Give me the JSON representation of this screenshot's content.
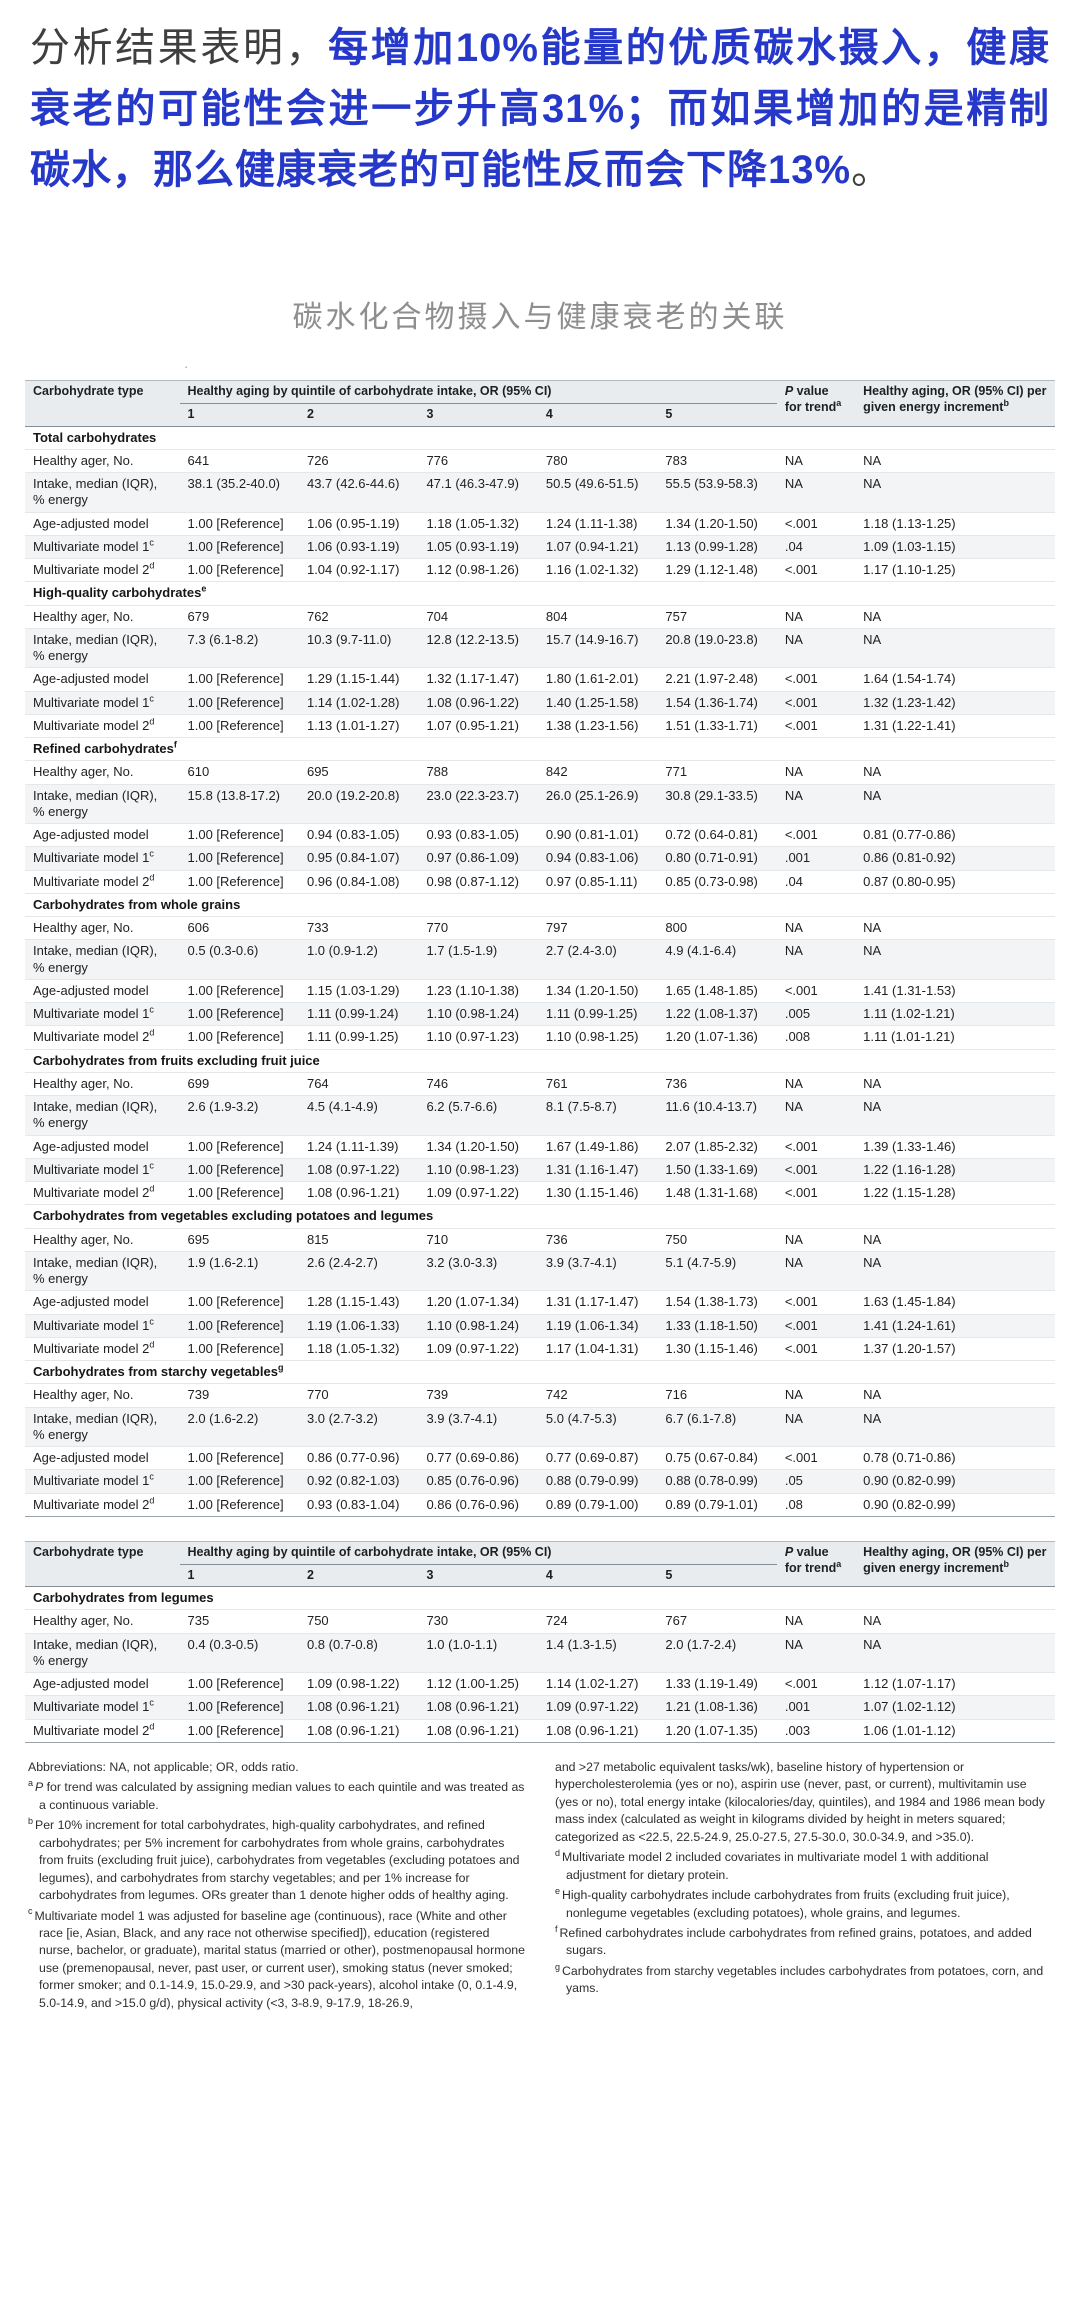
{
  "colors": {
    "accent_blue": "#2638c9",
    "title_gray": "#8e8e8e",
    "table_header_bg": "#e8ecef",
    "row_shade_bg": "#f2f4f6"
  },
  "intro": {
    "prefix": "分析结果表明，",
    "highlight": "每增加10%能量的优质碳水摄入，健康衰老的可能性会进一步升高31%；而如果增加的是精制碳水，那么健康衰老的可能性反而会下降13%",
    "suffix": "。"
  },
  "figure_title": "碳水化合物摄入与健康衰老的关联",
  "stray_mark": "·",
  "table": {
    "header": {
      "col_type": "Carbohydrate type",
      "group_title": "Healthy aging by quintile of carbohydrate intake, OR (95% CI)",
      "quintiles": [
        "1",
        "2",
        "3",
        "4",
        "5"
      ],
      "p_italic": "P",
      "p_rest": " value for trend",
      "p_sup": "a",
      "increment_label": "Healthy aging, OR (95% CI) per given energy increment",
      "increment_sup": "b"
    },
    "part1_sections": [
      {
        "label": "Total carbohydrates",
        "sup": "",
        "rows": [
          {
            "label": "Healthy ager, No.",
            "sup": "",
            "values": [
              "641",
              "726",
              "776",
              "780",
              "783",
              "NA",
              "NA"
            ]
          },
          {
            "label": "Intake, median (IQR), % energy",
            "sup": "",
            "values": [
              "38.1 (35.2-40.0)",
              "43.7 (42.6-44.6)",
              "47.1 (46.3-47.9)",
              "50.5 (49.6-51.5)",
              "55.5 (53.9-58.3)",
              "NA",
              "NA"
            ]
          },
          {
            "label": "Age-adjusted model",
            "sup": "",
            "values": [
              "1.00 [Reference]",
              "1.06 (0.95-1.19)",
              "1.18 (1.05-1.32)",
              "1.24 (1.11-1.38)",
              "1.34 (1.20-1.50)",
              "<.001",
              "1.18 (1.13-1.25)"
            ]
          },
          {
            "label": "Multivariate model 1",
            "sup": "c",
            "values": [
              "1.00 [Reference]",
              "1.06 (0.93-1.19)",
              "1.05 (0.93-1.19)",
              "1.07 (0.94-1.21)",
              "1.13 (0.99-1.28)",
              ".04",
              "1.09 (1.03-1.15)"
            ]
          },
          {
            "label": "Multivariate model 2",
            "sup": "d",
            "values": [
              "1.00 [Reference]",
              "1.04 (0.92-1.17)",
              "1.12 (0.98-1.26)",
              "1.16 (1.02-1.32)",
              "1.29 (1.12-1.48)",
              "<.001",
              "1.17 (1.10-1.25)"
            ]
          }
        ]
      },
      {
        "label": "High-quality carbohydrates",
        "sup": "e",
        "rows": [
          {
            "label": "Healthy ager, No.",
            "sup": "",
            "values": [
              "679",
              "762",
              "704",
              "804",
              "757",
              "NA",
              "NA"
            ]
          },
          {
            "label": "Intake, median (IQR), % energy",
            "sup": "",
            "values": [
              "7.3 (6.1-8.2)",
              "10.3 (9.7-11.0)",
              "12.8 (12.2-13.5)",
              "15.7 (14.9-16.7)",
              "20.8 (19.0-23.8)",
              "NA",
              "NA"
            ]
          },
          {
            "label": "Age-adjusted model",
            "sup": "",
            "values": [
              "1.00 [Reference]",
              "1.29 (1.15-1.44)",
              "1.32 (1.17-1.47)",
              "1.80 (1.61-2.01)",
              "2.21 (1.97-2.48)",
              "<.001",
              "1.64 (1.54-1.74)"
            ]
          },
          {
            "label": "Multivariate model 1",
            "sup": "c",
            "values": [
              "1.00 [Reference]",
              "1.14 (1.02-1.28)",
              "1.08 (0.96-1.22)",
              "1.40 (1.25-1.58)",
              "1.54 (1.36-1.74)",
              "<.001",
              "1.32 (1.23-1.42)"
            ]
          },
          {
            "label": "Multivariate model 2",
            "sup": "d",
            "values": [
              "1.00 [Reference]",
              "1.13 (1.01-1.27)",
              "1.07 (0.95-1.21)",
              "1.38 (1.23-1.56)",
              "1.51 (1.33-1.71)",
              "<.001",
              "1.31 (1.22-1.41)"
            ]
          }
        ]
      },
      {
        "label": "Refined carbohydrates",
        "sup": "f",
        "rows": [
          {
            "label": "Healthy ager, No.",
            "sup": "",
            "values": [
              "610",
              "695",
              "788",
              "842",
              "771",
              "NA",
              "NA"
            ]
          },
          {
            "label": "Intake, median (IQR), % energy",
            "sup": "",
            "values": [
              "15.8 (13.8-17.2)",
              "20.0 (19.2-20.8)",
              "23.0 (22.3-23.7)",
              "26.0 (25.1-26.9)",
              "30.8 (29.1-33.5)",
              "NA",
              "NA"
            ]
          },
          {
            "label": "Age-adjusted model",
            "sup": "",
            "values": [
              "1.00 [Reference]",
              "0.94 (0.83-1.05)",
              "0.93 (0.83-1.05)",
              "0.90 (0.81-1.01)",
              "0.72 (0.64-0.81)",
              "<.001",
              "0.81 (0.77-0.86)"
            ]
          },
          {
            "label": "Multivariate model 1",
            "sup": "c",
            "values": [
              "1.00 [Reference]",
              "0.95 (0.84-1.07)",
              "0.97 (0.86-1.09)",
              "0.94 (0.83-1.06)",
              "0.80 (0.71-0.91)",
              ".001",
              "0.86 (0.81-0.92)"
            ]
          },
          {
            "label": "Multivariate model 2",
            "sup": "d",
            "values": [
              "1.00 [Reference]",
              "0.96 (0.84-1.08)",
              "0.98 (0.87-1.12)",
              "0.97 (0.85-1.11)",
              "0.85 (0.73-0.98)",
              ".04",
              "0.87 (0.80-0.95)"
            ]
          }
        ]
      },
      {
        "label": "Carbohydrates from whole grains",
        "sup": "",
        "rows": [
          {
            "label": "Healthy ager, No.",
            "sup": "",
            "values": [
              "606",
              "733",
              "770",
              "797",
              "800",
              "NA",
              "NA"
            ]
          },
          {
            "label": "Intake, median (IQR), % energy",
            "sup": "",
            "values": [
              "0.5 (0.3-0.6)",
              "1.0 (0.9-1.2)",
              "1.7 (1.5-1.9)",
              "2.7 (2.4-3.0)",
              "4.9 (4.1-6.4)",
              "NA",
              "NA"
            ]
          },
          {
            "label": "Age-adjusted model",
            "sup": "",
            "values": [
              "1.00 [Reference]",
              "1.15 (1.03-1.29)",
              "1.23 (1.10-1.38)",
              "1.34 (1.20-1.50)",
              "1.65 (1.48-1.85)",
              "<.001",
              "1.41 (1.31-1.53)"
            ]
          },
          {
            "label": "Multivariate model 1",
            "sup": "c",
            "values": [
              "1.00 [Reference]",
              "1.11 (0.99-1.24)",
              "1.10 (0.98-1.24)",
              "1.11 (0.99-1.25)",
              "1.22 (1.08-1.37)",
              ".005",
              "1.11 (1.02-1.21)"
            ]
          },
          {
            "label": "Multivariate model 2",
            "sup": "d",
            "values": [
              "1.00 [Reference]",
              "1.11 (0.99-1.25)",
              "1.10 (0.97-1.23)",
              "1.10 (0.98-1.25)",
              "1.20 (1.07-1.36)",
              ".008",
              "1.11 (1.01-1.21)"
            ]
          }
        ]
      },
      {
        "label": "Carbohydrates from fruits excluding fruit juice",
        "sup": "",
        "rows": [
          {
            "label": "Healthy ager, No.",
            "sup": "",
            "values": [
              "699",
              "764",
              "746",
              "761",
              "736",
              "NA",
              "NA"
            ]
          },
          {
            "label": "Intake, median (IQR), % energy",
            "sup": "",
            "values": [
              "2.6 (1.9-3.2)",
              "4.5 (4.1-4.9)",
              "6.2 (5.7-6.6)",
              "8.1 (7.5-8.7)",
              "11.6 (10.4-13.7)",
              "NA",
              "NA"
            ]
          },
          {
            "label": "Age-adjusted model",
            "sup": "",
            "values": [
              "1.00 [Reference]",
              "1.24 (1.11-1.39)",
              "1.34 (1.20-1.50)",
              "1.67 (1.49-1.86)",
              "2.07 (1.85-2.32)",
              "<.001",
              "1.39 (1.33-1.46)"
            ]
          },
          {
            "label": "Multivariate model 1",
            "sup": "c",
            "values": [
              "1.00 [Reference]",
              "1.08 (0.97-1.22)",
              "1.10 (0.98-1.23)",
              "1.31 (1.16-1.47)",
              "1.50 (1.33-1.69)",
              "<.001",
              "1.22 (1.16-1.28)"
            ]
          },
          {
            "label": "Multivariate model 2",
            "sup": "d",
            "values": [
              "1.00 [Reference]",
              "1.08 (0.96-1.21)",
              "1.09 (0.97-1.22)",
              "1.30 (1.15-1.46)",
              "1.48 (1.31-1.68)",
              "<.001",
              "1.22 (1.15-1.28)"
            ]
          }
        ]
      },
      {
        "label": "Carbohydrates from vegetables excluding potatoes and legumes",
        "sup": "",
        "rows": [
          {
            "label": "Healthy ager, No.",
            "sup": "",
            "values": [
              "695",
              "815",
              "710",
              "736",
              "750",
              "NA",
              "NA"
            ]
          },
          {
            "label": "Intake, median (IQR), % energy",
            "sup": "",
            "values": [
              "1.9 (1.6-2.1)",
              "2.6 (2.4-2.7)",
              "3.2 (3.0-3.3)",
              "3.9 (3.7-4.1)",
              "5.1 (4.7-5.9)",
              "NA",
              "NA"
            ]
          },
          {
            "label": "Age-adjusted model",
            "sup": "",
            "values": [
              "1.00 [Reference]",
              "1.28 (1.15-1.43)",
              "1.20 (1.07-1.34)",
              "1.31 (1.17-1.47)",
              "1.54 (1.38-1.73)",
              "<.001",
              "1.63 (1.45-1.84)"
            ]
          },
          {
            "label": "Multivariate model 1",
            "sup": "c",
            "values": [
              "1.00 [Reference]",
              "1.19 (1.06-1.33)",
              "1.10 (0.98-1.24)",
              "1.19 (1.06-1.34)",
              "1.33 (1.18-1.50)",
              "<.001",
              "1.41 (1.24-1.61)"
            ]
          },
          {
            "label": "Multivariate model 2",
            "sup": "d",
            "values": [
              "1.00 [Reference]",
              "1.18 (1.05-1.32)",
              "1.09 (0.97-1.22)",
              "1.17 (1.04-1.31)",
              "1.30 (1.15-1.46)",
              "<.001",
              "1.37 (1.20-1.57)"
            ]
          }
        ]
      },
      {
        "label": "Carbohydrates from starchy vegetables",
        "sup": "g",
        "rows": [
          {
            "label": "Healthy ager, No.",
            "sup": "",
            "values": [
              "739",
              "770",
              "739",
              "742",
              "716",
              "NA",
              "NA"
            ]
          },
          {
            "label": "Intake, median (IQR), % energy",
            "sup": "",
            "values": [
              "2.0 (1.6-2.2)",
              "3.0 (2.7-3.2)",
              "3.9 (3.7-4.1)",
              "5.0 (4.7-5.3)",
              "6.7 (6.1-7.8)",
              "NA",
              "NA"
            ]
          },
          {
            "label": "Age-adjusted model",
            "sup": "",
            "values": [
              "1.00 [Reference]",
              "0.86 (0.77-0.96)",
              "0.77 (0.69-0.86)",
              "0.77 (0.69-0.87)",
              "0.75 (0.67-0.84)",
              "<.001",
              "0.78 (0.71-0.86)"
            ]
          },
          {
            "label": "Multivariate model 1",
            "sup": "c",
            "values": [
              "1.00 [Reference]",
              "0.92 (0.82-1.03)",
              "0.85 (0.76-0.96)",
              "0.88 (0.79-0.99)",
              "0.88 (0.78-0.99)",
              ".05",
              "0.90 (0.82-0.99)"
            ]
          },
          {
            "label": "Multivariate model 2",
            "sup": "d",
            "values": [
              "1.00 [Reference]",
              "0.93 (0.83-1.04)",
              "0.86 (0.76-0.96)",
              "0.89 (0.79-1.00)",
              "0.89 (0.79-1.01)",
              ".08",
              "0.90 (0.82-0.99)"
            ]
          }
        ]
      }
    ],
    "part2_sections": [
      {
        "label": "Carbohydrates from legumes",
        "sup": "",
        "rows": [
          {
            "label": "Healthy ager, No.",
            "sup": "",
            "values": [
              "735",
              "750",
              "730",
              "724",
              "767",
              "NA",
              "NA"
            ]
          },
          {
            "label": "Intake, median (IQR), % energy",
            "sup": "",
            "values": [
              "0.4 (0.3-0.5)",
              "0.8 (0.7-0.8)",
              "1.0 (1.0-1.1)",
              "1.4 (1.3-1.5)",
              "2.0 (1.7-2.4)",
              "NA",
              "NA"
            ]
          },
          {
            "label": "Age-adjusted model",
            "sup": "",
            "values": [
              "1.00 [Reference]",
              "1.09 (0.98-1.22)",
              "1.12 (1.00-1.25)",
              "1.14 (1.02-1.27)",
              "1.33 (1.19-1.49)",
              "<.001",
              "1.12 (1.07-1.17)"
            ]
          },
          {
            "label": "Multivariate model 1",
            "sup": "c",
            "values": [
              "1.00 [Reference]",
              "1.08 (0.96-1.21)",
              "1.08 (0.96-1.21)",
              "1.09 (0.97-1.22)",
              "1.21 (1.08-1.36)",
              ".001",
              "1.07 (1.02-1.12)"
            ]
          },
          {
            "label": "Multivariate model 2",
            "sup": "d",
            "values": [
              "1.00 [Reference]",
              "1.08 (0.96-1.21)",
              "1.08 (0.96-1.21)",
              "1.08 (0.96-1.21)",
              "1.20 (1.07-1.35)",
              ".003",
              "1.06 (1.01-1.12)"
            ]
          }
        ]
      }
    ]
  },
  "footnotes": {
    "left": [
      {
        "sup": "",
        "em": "",
        "text": "Abbreviations: NA, not applicable; OR, odds ratio."
      },
      {
        "sup": "a",
        "em": "P",
        "text": " for trend was calculated by assigning median values to each quintile and was treated as a continuous variable."
      },
      {
        "sup": "b",
        "em": "",
        "text": "Per 10% increment for total carbohydrates, high-quality carbohydrates, and refined carbohydrates; per 5% increment for carbohydrates from whole grains, carbohydrates from fruits (excluding fruit juice), carbohydrates from vegetables (excluding potatoes and legumes), and carbohydrates from starchy vegetables; and per 1% increase for carbohydrates from legumes. ORs greater than 1 denote higher odds of healthy aging."
      },
      {
        "sup": "c",
        "em": "",
        "text": "Multivariate model 1 was adjusted for baseline age (continuous), race (White and other race [ie, Asian, Black, and any race not otherwise specified]), education (registered nurse, bachelor, or graduate), marital status (married or other), postmenopausal hormone use (premenopausal, never, past user, or current user), smoking status (never smoked; former smoker; and 0.1-14.9, 15.0-29.9, and >30 pack-years), alcohol intake (0, 0.1-4.9, 5.0-14.9, and >15.0 g/d), physical activity (<3, 3-8.9, 9-17.9, 18-26.9,"
      }
    ],
    "right": [
      {
        "sup": "",
        "em": "",
        "text": "and >27 metabolic equivalent tasks/wk), baseline history of hypertension or hypercholesterolemia (yes or no), aspirin use (never, past, or current), multivitamin use (yes or no), total energy intake (kilocalories/day, quintiles), and 1984 and 1986 mean body mass index (calculated as weight in kilograms divided by height in meters squared; categorized as <22.5, 22.5-24.9, 25.0-27.5, 27.5-30.0, 30.0-34.9, and >35.0)."
      },
      {
        "sup": "d",
        "em": "",
        "text": "Multivariate model 2 included covariates in multivariate model 1 with additional adjustment for dietary protein."
      },
      {
        "sup": "e",
        "em": "",
        "text": "High-quality carbohydrates include carbohydrates from fruits (excluding fruit juice), nonlegume vegetables (excluding potatoes), whole grains, and legumes."
      },
      {
        "sup": "f",
        "em": "",
        "text": "Refined carbohydrates include carbohydrates from refined grains, potatoes, and added sugars."
      },
      {
        "sup": "g",
        "em": "",
        "text": "Carbohydrates from starchy vegetables includes carbohydrates from potatoes, corn, and yams."
      }
    ]
  }
}
